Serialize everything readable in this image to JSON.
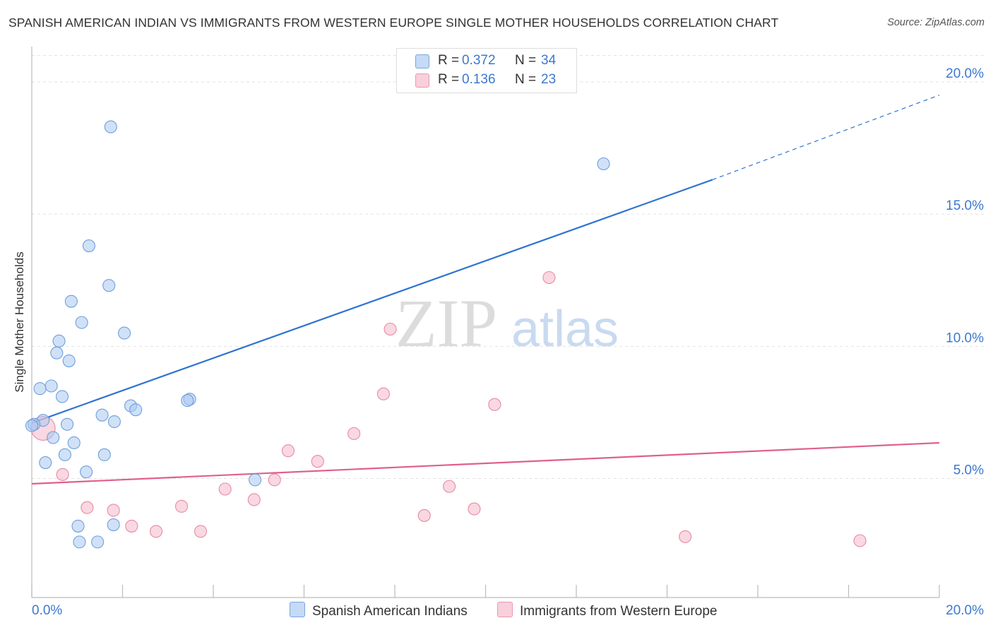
{
  "title": "SPANISH AMERICAN INDIAN VS IMMIGRANTS FROM WESTERN EUROPE SINGLE MOTHER HOUSEHOLDS CORRELATION CHART",
  "source": "Source: ZipAtlas.com",
  "watermark": {
    "zip": "ZIP",
    "atlas": "atlas"
  },
  "legend": {
    "rows": [
      {
        "r_label": "R =",
        "r_value": "0.372",
        "n_label": "N =",
        "n_value": "34",
        "color": "#a9c8f0"
      },
      {
        "r_label": "R =",
        "r_value": "0.136",
        "n_label": "N =",
        "n_value": "23",
        "color": "#f5b8c9"
      }
    ]
  },
  "colors": {
    "blue_fill": "#a9c8f0",
    "blue_stroke": "#6f9fdc",
    "blue_line": "#2f74d0",
    "pink_fill": "#f5b8c9",
    "pink_stroke": "#e58aa6",
    "pink_line": "#e0608a",
    "tick_label": "#3b78d0",
    "grid": "#e2e2e2"
  },
  "chart_data": {
    "type": "scatter",
    "title": "SPANISH AMERICAN INDIAN VS IMMIGRANTS FROM WESTERN EUROPE SINGLE MOTHER HOUSEHOLDS CORRELATION CHART",
    "xlabel": "",
    "ylabel": "Single Mother Households",
    "xlim": [
      0,
      20
    ],
    "ylim": [
      0.5,
      21
    ],
    "x_tick_labels": [
      "0.0%",
      "20.0%"
    ],
    "y_ticks": [
      5,
      10,
      15,
      20
    ],
    "y_tick_labels": [
      "5.0%",
      "10.0%",
      "15.0%",
      "20.0%"
    ],
    "grid": true,
    "legend_position": "top-center",
    "series": [
      {
        "name": "Spanish American Indians",
        "color": "#a9c8f0",
        "stats": {
          "R": 0.372,
          "N": 34
        },
        "trend": {
          "x": [
            0,
            15
          ],
          "y": [
            7.1,
            16.3
          ],
          "extends_dashed_to_x": 20,
          "extends_dashed_to_y": 19.5
        },
        "points": [
          [
            1.74,
            18.3
          ],
          [
            1.26,
            13.8
          ],
          [
            1.7,
            12.3
          ],
          [
            0.87,
            11.7
          ],
          [
            1.1,
            10.9
          ],
          [
            2.04,
            10.5
          ],
          [
            0.6,
            10.2
          ],
          [
            0.55,
            9.75
          ],
          [
            0.82,
            9.45
          ],
          [
            0.18,
            8.4
          ],
          [
            0.43,
            8.5
          ],
          [
            0.67,
            8.1
          ],
          [
            3.48,
            8.0
          ],
          [
            3.43,
            7.95
          ],
          [
            2.18,
            7.75
          ],
          [
            2.29,
            7.6
          ],
          [
            1.55,
            7.4
          ],
          [
            1.82,
            7.15
          ],
          [
            0.25,
            7.2
          ],
          [
            0.05,
            7.05
          ],
          [
            0.78,
            7.05
          ],
          [
            0.47,
            6.55
          ],
          [
            0.93,
            6.35
          ],
          [
            1.6,
            5.9
          ],
          [
            0.73,
            5.9
          ],
          [
            0.3,
            5.6
          ],
          [
            1.2,
            5.25
          ],
          [
            4.92,
            4.95
          ],
          [
            1.02,
            3.2
          ],
          [
            1.8,
            3.25
          ],
          [
            1.05,
            2.6
          ],
          [
            1.45,
            2.6
          ],
          [
            0.0,
            7.0
          ],
          [
            12.6,
            16.9
          ]
        ]
      },
      {
        "name": "Immigrants from Western Europe",
        "color": "#f5b8c9",
        "stats": {
          "R": 0.136,
          "N": 23
        },
        "trend": {
          "x": [
            0,
            20
          ],
          "y": [
            4.8,
            6.35
          ]
        },
        "points": [
          [
            0.25,
            6.9
          ],
          [
            0.68,
            5.15
          ],
          [
            1.22,
            3.9
          ],
          [
            1.8,
            3.8
          ],
          [
            2.2,
            3.2
          ],
          [
            2.74,
            3.0
          ],
          [
            3.3,
            3.95
          ],
          [
            3.72,
            3.0
          ],
          [
            4.26,
            4.6
          ],
          [
            4.9,
            4.2
          ],
          [
            5.35,
            4.95
          ],
          [
            5.65,
            6.05
          ],
          [
            6.3,
            5.65
          ],
          [
            7.1,
            6.7
          ],
          [
            7.75,
            8.2
          ],
          [
            7.9,
            10.65
          ],
          [
            8.65,
            3.6
          ],
          [
            9.2,
            4.7
          ],
          [
            9.75,
            3.85
          ],
          [
            10.2,
            7.8
          ],
          [
            11.4,
            12.6
          ],
          [
            14.4,
            2.8
          ],
          [
            18.25,
            2.65
          ]
        ]
      }
    ]
  }
}
